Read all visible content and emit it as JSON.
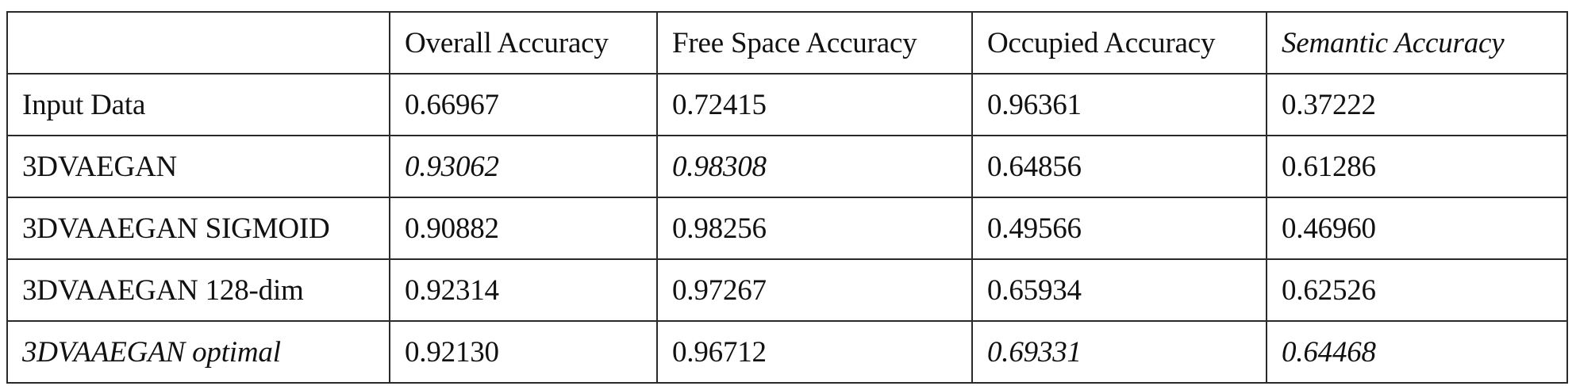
{
  "table": {
    "headers": [
      "",
      "Overall Accuracy",
      "Free Space Accuracy",
      "Occupied Accuracy",
      "Semantic Accuracy"
    ],
    "header_emphasis": [
      false,
      false,
      false,
      false,
      true
    ],
    "rows": [
      {
        "name": "Input Data",
        "name_emphasis": false,
        "values": [
          "0.66967",
          "0.72415",
          "0.96361",
          "0.37222"
        ],
        "emphasis": [
          false,
          false,
          false,
          false
        ]
      },
      {
        "name": "3DVAEGAN",
        "name_emphasis": false,
        "values": [
          "0.93062",
          "0.98308",
          "0.64856",
          "0.61286"
        ],
        "emphasis": [
          true,
          true,
          false,
          false
        ]
      },
      {
        "name": "3DVAAEGAN SIGMOID",
        "name_emphasis": false,
        "values": [
          "0.90882",
          "0.98256",
          "0.49566",
          "0.46960"
        ],
        "emphasis": [
          false,
          false,
          false,
          false
        ]
      },
      {
        "name": "3DVAAEGAN 128-dim",
        "name_emphasis": false,
        "values": [
          "0.92314",
          "0.97267",
          "0.65934",
          "0.62526"
        ],
        "emphasis": [
          false,
          false,
          false,
          false
        ]
      },
      {
        "name": "3DVAAEGAN optimal",
        "name_emphasis": true,
        "values": [
          "0.92130",
          "0.96712",
          "0.69331",
          "0.64468"
        ],
        "emphasis": [
          false,
          false,
          true,
          true
        ]
      }
    ]
  }
}
